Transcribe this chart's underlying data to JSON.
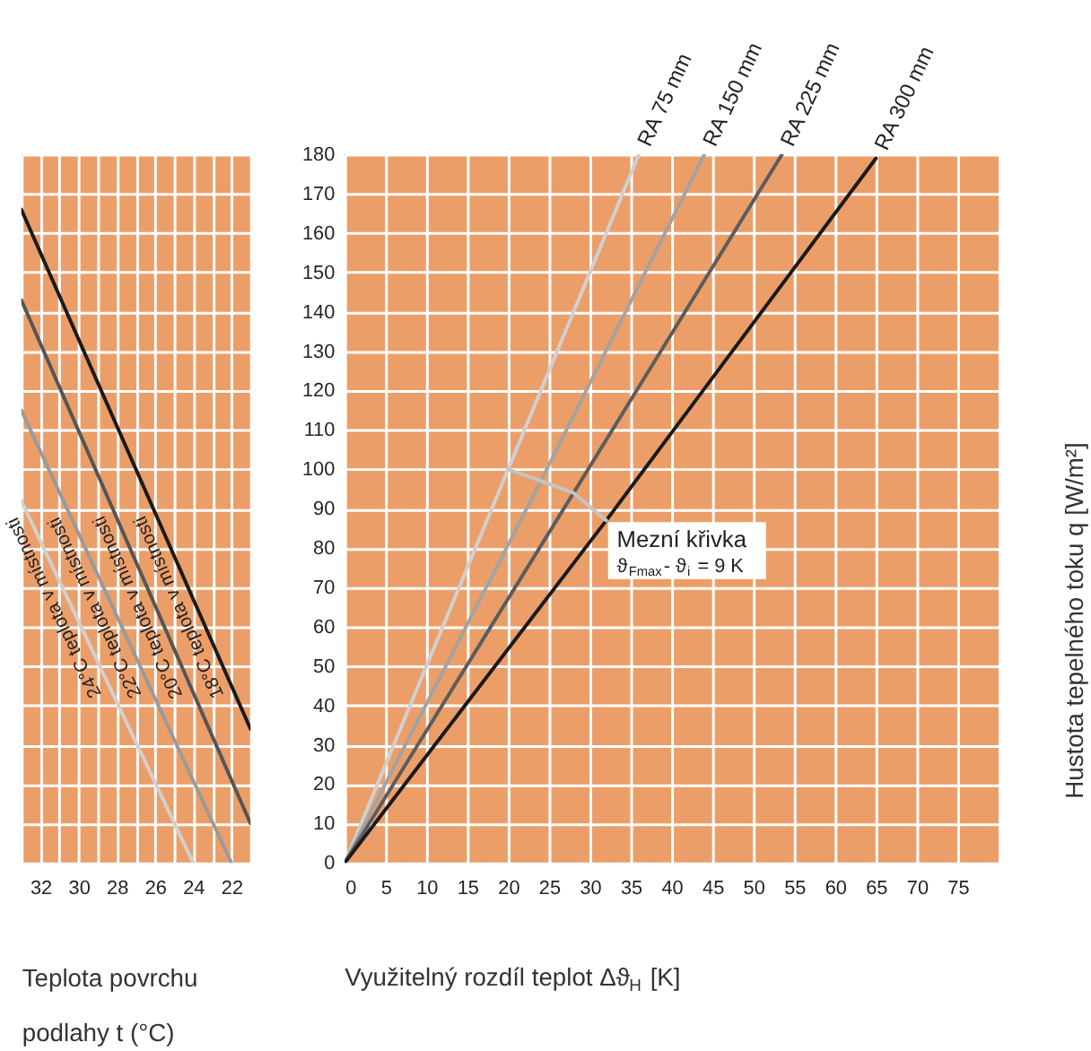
{
  "chart_data": [
    {
      "type": "line",
      "xlabel": "Teplota povrchu\npodlahy t (°C)",
      "xlim": [
        33,
        21
      ],
      "xticks": [
        {
          "value": 33,
          "label": null
        },
        32,
        {
          "value": 31,
          "label": null
        },
        30,
        {
          "value": 29,
          "label": null
        },
        28,
        {
          "value": 27,
          "label": null
        },
        26,
        {
          "value": 25,
          "label": null
        },
        24,
        {
          "value": 23,
          "label": null
        },
        22,
        {
          "value": 21,
          "label": null
        }
      ],
      "ylim": [
        0,
        180
      ],
      "yticks": [
        0,
        10,
        20,
        30,
        40,
        50,
        60,
        70,
        80,
        90,
        100,
        110,
        120,
        130,
        140,
        150,
        160,
        170,
        180
      ],
      "tick_labels": "x",
      "grid": true,
      "legend": false,
      "series": [
        {
          "name": "18°C teplota v místnosti",
          "color": "#1a1a1a",
          "x": [
            33,
            21
          ],
          "values": [
            166,
            34
          ]
        },
        {
          "name": "20°C teplota v místnosti",
          "color": "#555555",
          "x": [
            33,
            21
          ],
          "values": [
            143,
            10
          ]
        },
        {
          "name": "22°C teplota v místnosti",
          "color": "#9a9a9a",
          "x": [
            33,
            22
          ],
          "values": [
            115,
            0
          ]
        },
        {
          "name": "24°C teplota v místnosti",
          "color": "#d0d0d0",
          "x": [
            33,
            24
          ],
          "values": [
            92,
            0
          ]
        }
      ]
    },
    {
      "type": "line",
      "xlabel": "Využitelný rozdíl teplot Δϑ$_{H}$ [K]",
      "ylabel": "Hustota tepelného toku q [W/m²]",
      "xlim": [
        0,
        80
      ],
      "xticks": [
        0,
        5,
        10,
        15,
        20,
        25,
        30,
        35,
        40,
        45,
        50,
        55,
        60,
        65,
        70,
        75
      ],
      "ylim": [
        0,
        180
      ],
      "yticks": [
        0,
        10,
        20,
        30,
        40,
        50,
        60,
        70,
        80,
        90,
        100,
        110,
        120,
        130,
        140,
        150,
        160,
        170,
        180
      ],
      "grid": true,
      "legend": false,
      "annotations": [
        "ϑ$_{Fmax}$- ϑ$_{i}$ = 9 K"
      ],
      "series": [
        {
          "name": "RA 75 mm",
          "color": "#d0d0d0",
          "x": [
            0,
            20,
            36
          ],
          "values": [
            0,
            100,
            180
          ]
        },
        {
          "name": "RA 150 mm",
          "color": "#a3a3a3",
          "x": [
            0,
            24,
            44
          ],
          "values": [
            0,
            97,
            180
          ]
        },
        {
          "name": "RA 225 mm",
          "color": "#5c5c5c",
          "x": [
            0,
            28,
            53.5
          ],
          "values": [
            0,
            94,
            180
          ]
        },
        {
          "name": "RA 300 mm",
          "color": "#1a1a1a",
          "x": [
            0,
            32,
            65
          ],
          "values": [
            0,
            87,
            179
          ]
        },
        {
          "name": "Mezní křivka",
          "color": "#c4c4c4",
          "x": [
            20,
            24,
            28,
            32
          ],
          "values": [
            100,
            97,
            94,
            87
          ]
        }
      ]
    }
  ]
}
